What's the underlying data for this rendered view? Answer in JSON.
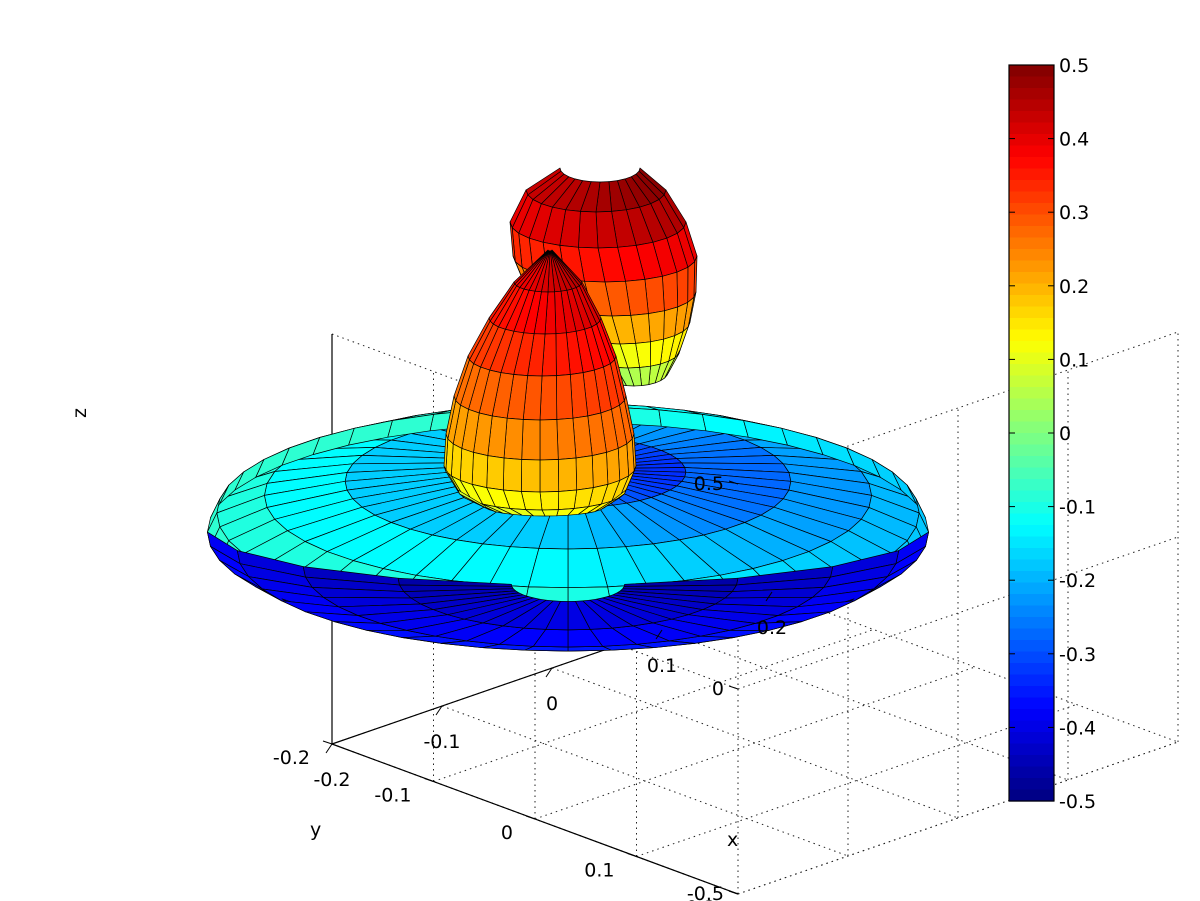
{
  "chart_data": {
    "type": "surface3d",
    "colormap": "jet",
    "grid": true,
    "xlabel": "x",
    "ylabel": "y",
    "zlabel": "z",
    "xlim": [
      -0.2,
      0.2
    ],
    "ylim": [
      -0.2,
      0.2
    ],
    "zlim": [
      -0.5,
      0.5
    ],
    "x_ticks": [
      "-0.2",
      "-0.1",
      "0",
      "0.1",
      "0.2"
    ],
    "y_ticks": [
      "-0.2",
      "-0.1",
      "0",
      "0.1",
      "0.2"
    ],
    "z_ticks": [
      "-0.5",
      "0",
      "0.5"
    ],
    "colorbar": {
      "range": [
        -0.5,
        0.5
      ],
      "ticks": [
        "0.5",
        "0.4",
        "0.3",
        "0.2",
        "0.1",
        "0",
        "-0.1",
        "-0.2",
        "-0.3",
        "-0.4",
        "-0.5"
      ],
      "location": "right"
    },
    "surfaces": [
      {
        "shape": "flattened ellipsoid (disc)",
        "center": [
          0,
          0,
          -0.4
        ],
        "radius_xy": 0.2,
        "z_range": [
          -0.5,
          -0.3
        ]
      },
      {
        "shape": "twisted lobe",
        "z_range": [
          -0.3,
          0.5
        ]
      }
    ]
  }
}
